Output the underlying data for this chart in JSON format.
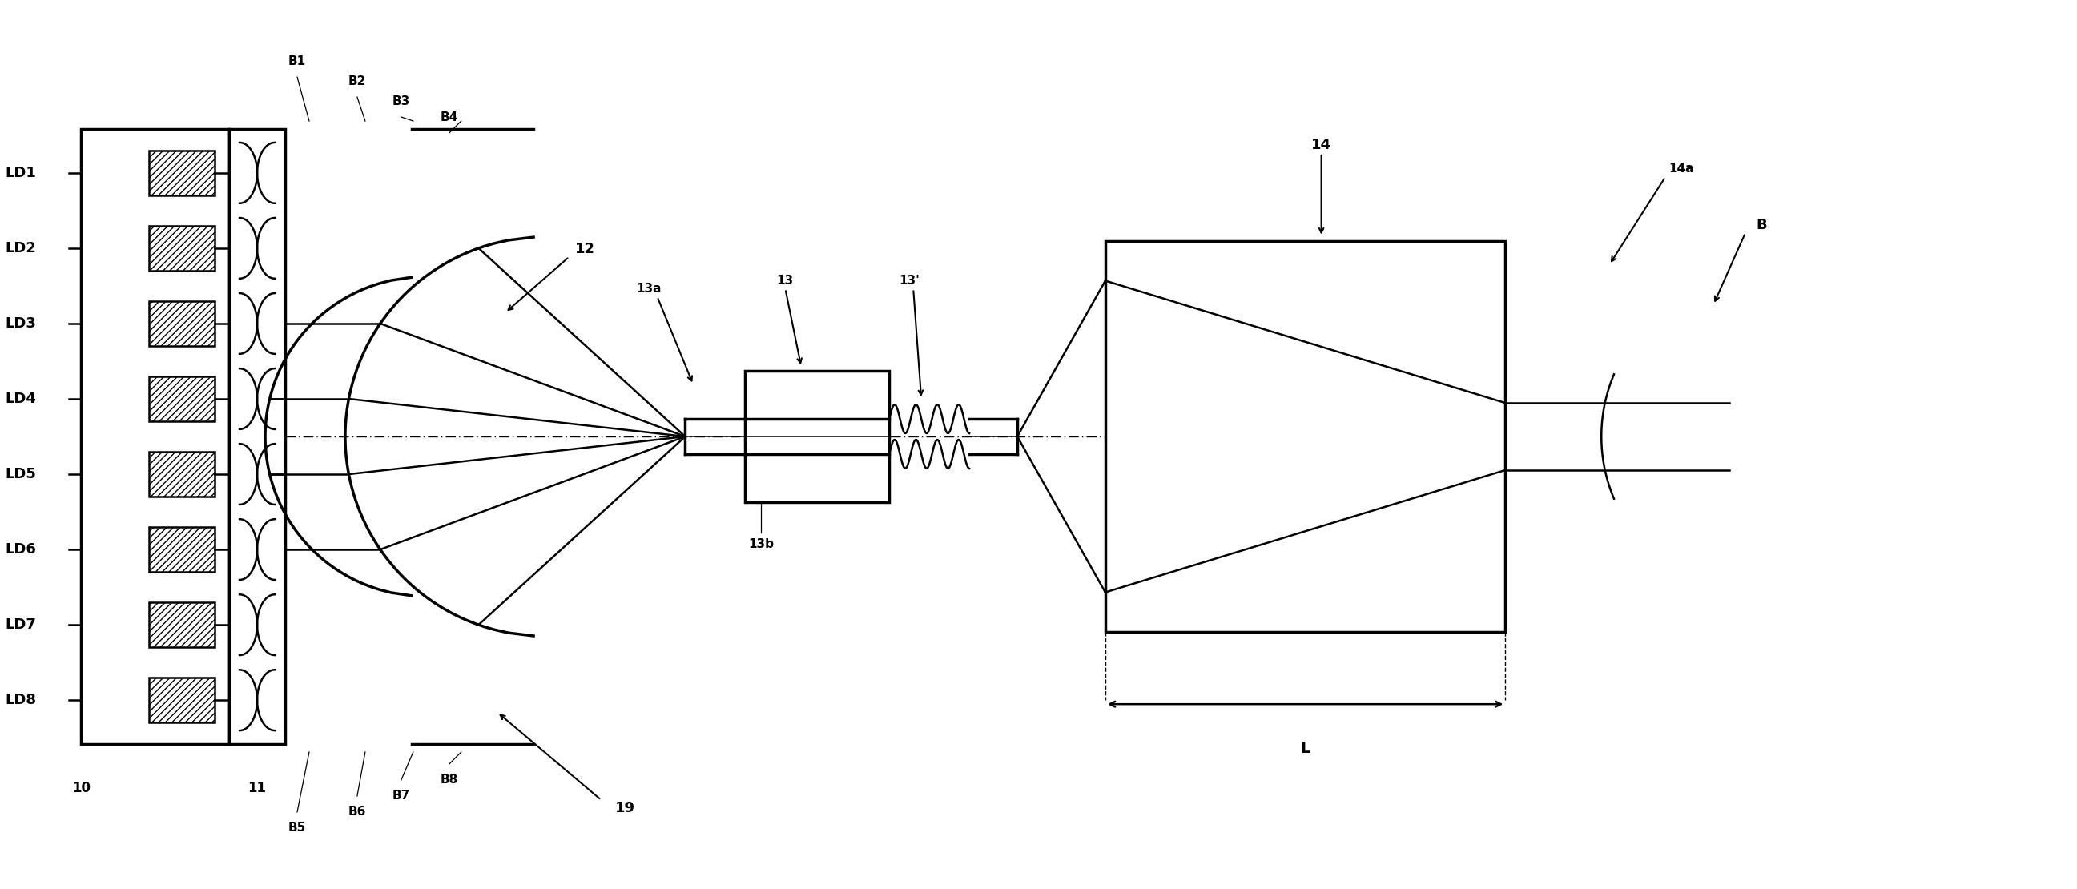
{
  "bg_color": "#ffffff",
  "line_color": "#000000",
  "lw": 1.8,
  "lw_thick": 2.5,
  "fig_w": 25.93,
  "fig_h": 11.1,
  "ld_labels": [
    "LD1",
    "LD2",
    "LD3",
    "LD4",
    "LD5",
    "LD6",
    "LD7",
    "LD8"
  ],
  "labels_top": [
    "B1",
    "B2",
    "B3",
    "B4"
  ],
  "labels_bottom": [
    "B5",
    "B6",
    "B7",
    "B8"
  ],
  "label_10": "10",
  "label_11": "11",
  "label_12": "12",
  "label_13": "13",
  "label_13a": "13a",
  "label_13b": "13b",
  "label_13p": "13'",
  "label_14": "14",
  "label_14a": "14a",
  "label_B": "B",
  "label_L": "L",
  "label_19": "19"
}
